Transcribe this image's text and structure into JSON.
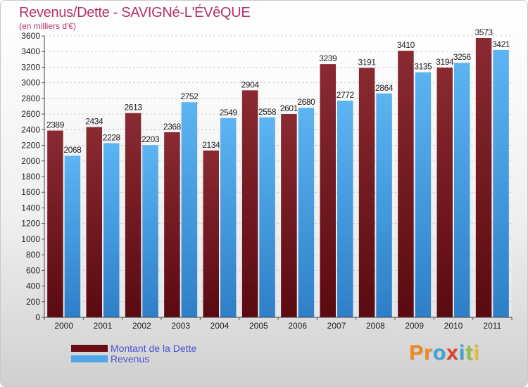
{
  "header": {
    "title": "Revenus/Dette - SAVIGNé-L'ÉVêQUE",
    "subtitle": "(en milliers d'€)"
  },
  "colors": {
    "debt": "#7a1a22",
    "revenue": "#4fa6e8",
    "title": "#b0306a",
    "legend_text": "#4a52d8"
  },
  "chart_data": {
    "type": "bar",
    "title": "Revenus/Dette - SAVIGNé-L'ÉVêQUE",
    "ylabel": "(en milliers d'€)",
    "xlabel": "",
    "categories": [
      "2000",
      "2001",
      "2002",
      "2003",
      "2004",
      "2005",
      "2006",
      "2007",
      "2008",
      "2009",
      "2010",
      "2011"
    ],
    "ylim": [
      0,
      3600
    ],
    "yticks": [
      0,
      200,
      400,
      600,
      800,
      1000,
      1200,
      1400,
      1600,
      1800,
      2000,
      2200,
      2400,
      2600,
      2800,
      3000,
      3200,
      3400,
      3600
    ],
    "grid": true,
    "legend_position": "bottom-left",
    "series": [
      {
        "name": "Montant de la Dette",
        "values": [
          2389,
          2434,
          2613,
          2368,
          2134,
          2904,
          2601,
          3239,
          3191,
          3410,
          3194,
          3573
        ]
      },
      {
        "name": "Revenus",
        "values": [
          2068,
          2228,
          2203,
          2752,
          2549,
          2558,
          2680,
          2772,
          2864,
          3135,
          3256,
          3421
        ]
      }
    ]
  },
  "legend": {
    "items": [
      {
        "label": "Montant de la Dette"
      },
      {
        "label": "Revenus"
      }
    ]
  },
  "logo": {
    "text": "Proxiti",
    "letters": [
      {
        "char": "P",
        "color": "#f08a1c"
      },
      {
        "char": "r",
        "color": "#f08a1c"
      },
      {
        "char": "o",
        "color": "#3aa2dc"
      },
      {
        "char": "x",
        "color": "#e23d2c"
      },
      {
        "char": "i",
        "color": "#3aa2dc"
      },
      {
        "char": "t",
        "color": "#8cc43c"
      },
      {
        "char": "i",
        "color": "#f0c020"
      }
    ]
  }
}
